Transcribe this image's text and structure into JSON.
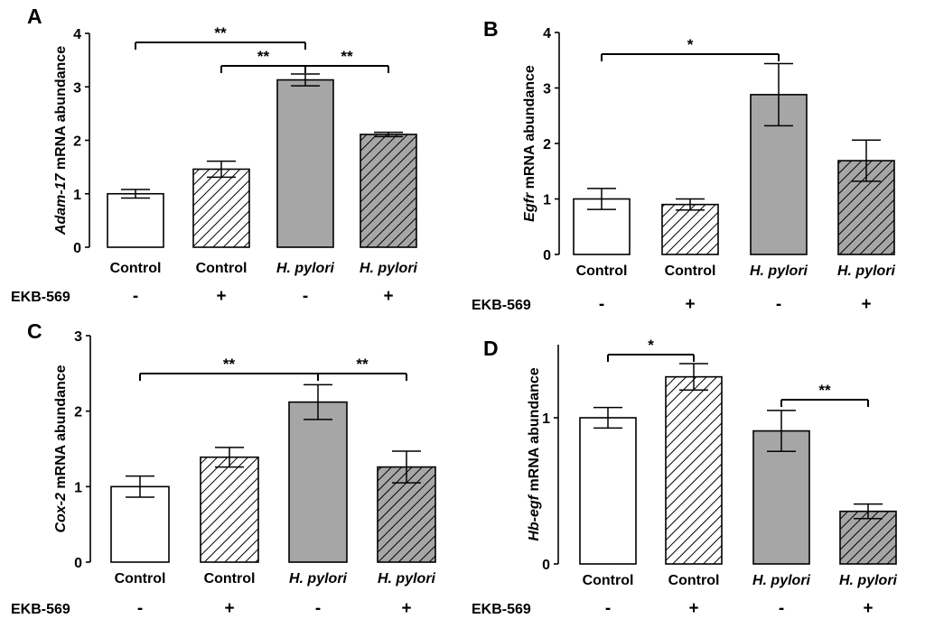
{
  "figure": {
    "row_label": "EKB-569"
  },
  "chart_data": [
    {
      "panel": "A",
      "type": "bar",
      "ylabel_italic": "Adam-17",
      "ylabel_rest": " mRNA abundance",
      "ylim": [
        0,
        4
      ],
      "yticks": [
        "0",
        "1",
        "2",
        "3",
        "4"
      ],
      "categories": [
        "Control",
        "Control",
        "H. pylori",
        "H. pylori"
      ],
      "category_italic": [
        false,
        false,
        true,
        true
      ],
      "ekb569": [
        "-",
        "+",
        "-",
        "+"
      ],
      "values": [
        1.0,
        1.46,
        3.13,
        2.11
      ],
      "errors": [
        0.08,
        0.15,
        0.11,
        0.04
      ],
      "fills": [
        "white",
        "hatch-light",
        "gray",
        "hatch-dark"
      ],
      "significance": [
        {
          "from": 0,
          "to": 2,
          "label": "**"
        },
        {
          "from": 1,
          "to": 2,
          "label": "**"
        },
        {
          "from": 2,
          "to": 3,
          "label": "**"
        }
      ]
    },
    {
      "panel": "B",
      "type": "bar",
      "ylabel_italic": "Egfr",
      "ylabel_rest": " mRNA abundance",
      "ylim": [
        0,
        4
      ],
      "yticks": [
        "0",
        "1",
        "2",
        "3",
        "4"
      ],
      "categories": [
        "Control",
        "Control",
        "H. pylori",
        "H. pylori"
      ],
      "category_italic": [
        false,
        false,
        true,
        true
      ],
      "ekb569": [
        "-",
        "+",
        "-",
        "+"
      ],
      "values": [
        1.0,
        0.9,
        2.88,
        1.69
      ],
      "errors": [
        0.19,
        0.1,
        0.56,
        0.37
      ],
      "fills": [
        "white",
        "hatch-light",
        "gray",
        "hatch-dark"
      ],
      "significance": [
        {
          "from": 0,
          "to": 2,
          "label": "*"
        }
      ]
    },
    {
      "panel": "C",
      "type": "bar",
      "ylabel_italic": "Cox-2",
      "ylabel_rest": " mRNA abundance",
      "ylim": [
        0,
        3
      ],
      "yticks": [
        "0",
        "1",
        "2",
        "3"
      ],
      "categories": [
        "Control",
        "Control",
        "H. pylori",
        "H. pylori"
      ],
      "category_italic": [
        false,
        false,
        true,
        true
      ],
      "ekb569": [
        "-",
        "+",
        "-",
        "+"
      ],
      "values": [
        1.0,
        1.39,
        2.12,
        1.26
      ],
      "errors": [
        0.14,
        0.13,
        0.23,
        0.21
      ],
      "fills": [
        "white",
        "hatch-light",
        "gray",
        "hatch-dark"
      ],
      "significance": [
        {
          "from": 0,
          "to": 2,
          "label": "**"
        },
        {
          "from": 2,
          "to": 3,
          "label": "**"
        }
      ]
    },
    {
      "panel": "D",
      "type": "bar",
      "ylabel_italic": "Hb-egf",
      "ylabel_rest": " mRNA abundance",
      "ylim": [
        0,
        1.5
      ],
      "yticks": [
        "0",
        "1"
      ],
      "ytick_values": [
        0,
        1
      ],
      "categories": [
        "Control",
        "Control",
        "H. pylori",
        "H. pylori"
      ],
      "category_italic": [
        false,
        false,
        true,
        true
      ],
      "ekb569": [
        "-",
        "+",
        "-",
        "+"
      ],
      "values": [
        1.0,
        1.28,
        0.91,
        0.36
      ],
      "errors": [
        0.07,
        0.09,
        0.14,
        0.05
      ],
      "fills": [
        "white",
        "hatch-light",
        "gray",
        "hatch-dark"
      ],
      "significance": [
        {
          "from": 0,
          "to": 1,
          "label": "*"
        },
        {
          "from": 2,
          "to": 3,
          "label": "**"
        }
      ]
    }
  ]
}
